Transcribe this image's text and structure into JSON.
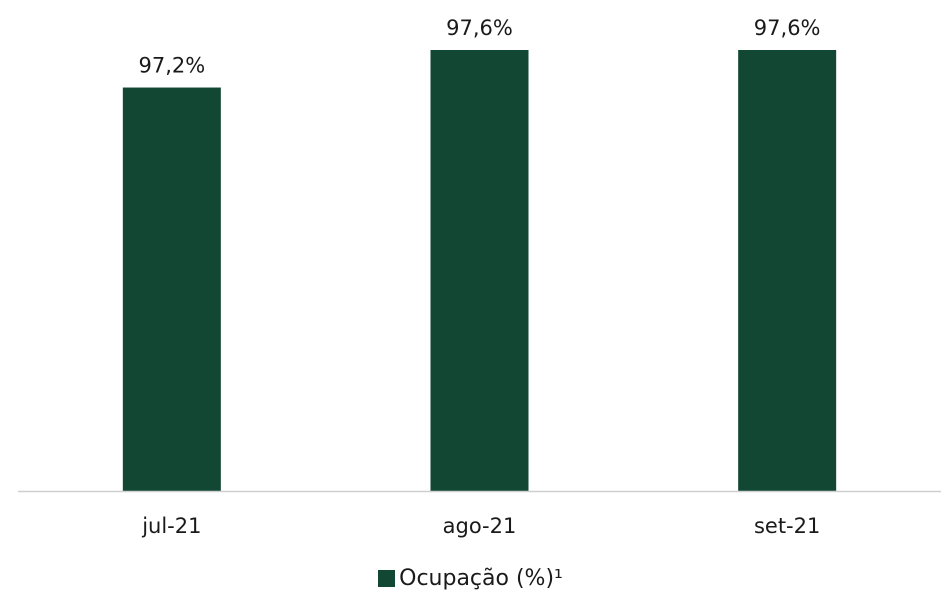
{
  "colors": {
    "bar": "#124734",
    "axis": "#cfcfcf",
    "text": "#1a1a1a"
  },
  "chart_data": {
    "type": "bar",
    "categories": [
      "jul-21",
      "ago-21",
      "set-21"
    ],
    "series": [
      {
        "name": "Ocupação (%)¹",
        "values": [
          97.2,
          97.6,
          97.6
        ],
        "labels": [
          "97,2%",
          "97,6%",
          "97,6%"
        ]
      }
    ],
    "ylim": [
      92.9,
      97.6
    ],
    "grid": false,
    "legend_position": "bottom"
  }
}
